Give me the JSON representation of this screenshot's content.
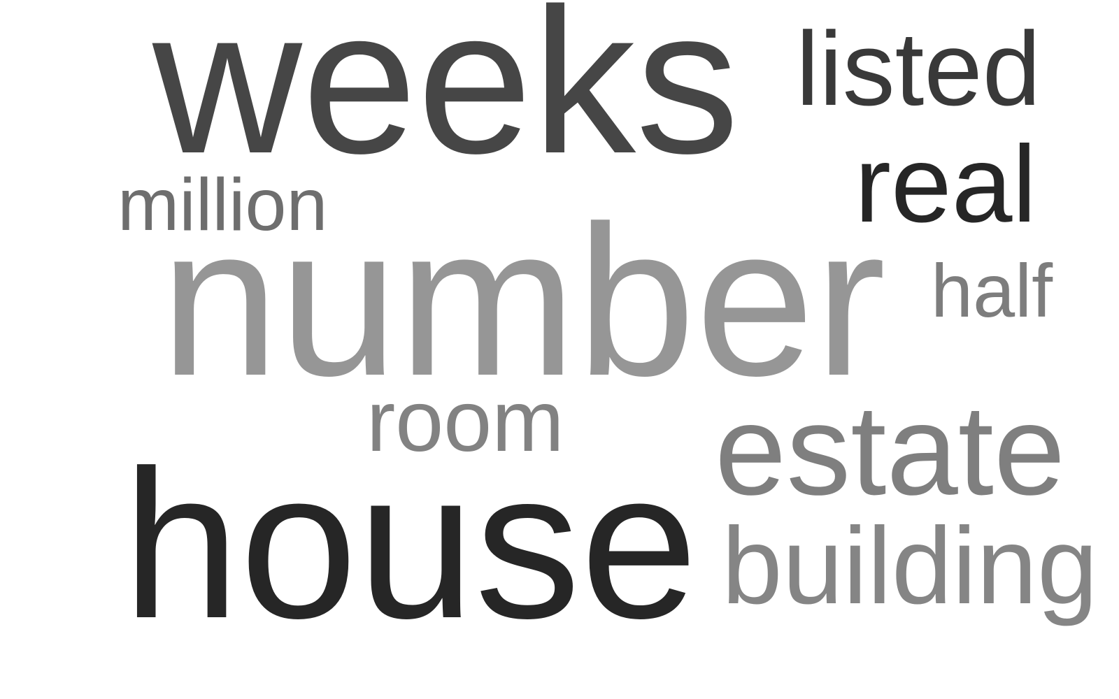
{
  "words": [
    {
      "id": "weeks",
      "text": "weeks",
      "color": "#464646"
    },
    {
      "id": "listed",
      "text": "listed",
      "color": "#393939"
    },
    {
      "id": "million",
      "text": "million",
      "color": "#6e6e6e"
    },
    {
      "id": "real",
      "text": "real",
      "color": "#262626"
    },
    {
      "id": "number",
      "text": "number",
      "color": "#969696"
    },
    {
      "id": "half",
      "text": "half",
      "color": "#7d7d7d"
    },
    {
      "id": "room",
      "text": "room",
      "color": "#828282"
    },
    {
      "id": "estate",
      "text": "estate",
      "color": "#7f7f7f"
    },
    {
      "id": "house",
      "text": "house",
      "color": "#262626"
    },
    {
      "id": "building",
      "text": "building",
      "color": "#858585"
    }
  ]
}
